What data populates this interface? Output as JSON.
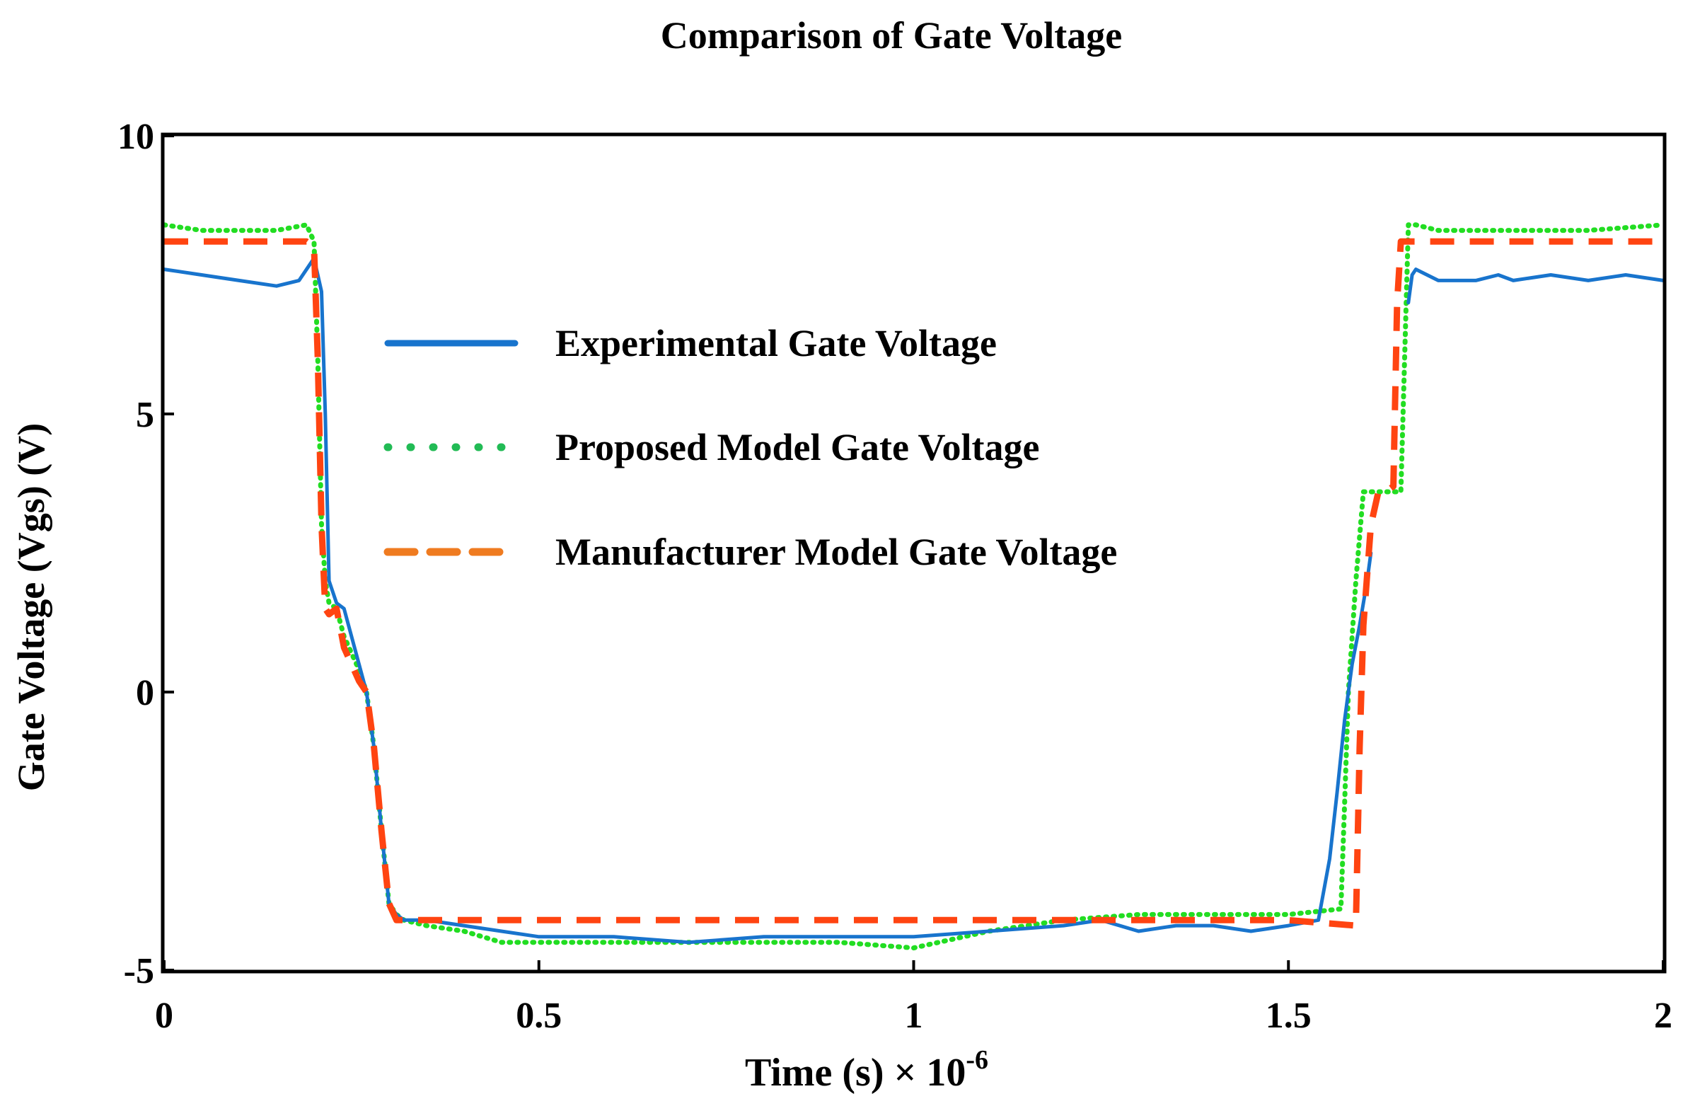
{
  "chart_data": {
    "type": "line",
    "title": "Comparison of Gate Voltage",
    "xlabel": "Time (s) × 10",
    "xlabel_exponent": "-6",
    "ylabel": "Gate Voltage (Vgs) (V)",
    "xlim": [
      0,
      2
    ],
    "ylim": [
      -5,
      10
    ],
    "x_ticks": [
      0,
      0.5,
      1,
      1.5,
      2
    ],
    "x_tick_labels": [
      "0",
      "0.5",
      "1",
      "1.5",
      "2"
    ],
    "y_ticks": [
      -5,
      0,
      5,
      10
    ],
    "y_tick_labels": [
      "-5",
      "0",
      "5",
      "10"
    ],
    "grid": false,
    "legend_position": "upper-left-center",
    "series": [
      {
        "name": "Experimental Gate Voltage",
        "color": "#1874cd",
        "style": "solid",
        "x": [
          0,
          0.05,
          0.1,
          0.15,
          0.18,
          0.2,
          0.21,
          0.215,
          0.22,
          0.225,
          0.23,
          0.24,
          0.26,
          0.27,
          0.28,
          0.29,
          0.3,
          0.31,
          0.32,
          0.35,
          0.4,
          0.45,
          0.5,
          0.6,
          0.7,
          0.8,
          0.9,
          1.0,
          1.1,
          1.2,
          1.25,
          1.3,
          1.35,
          1.4,
          1.45,
          1.5,
          1.54,
          1.555,
          1.565,
          1.575,
          1.585,
          1.595,
          1.605,
          1.61,
          1.615,
          1.65,
          1.66,
          1.665,
          1.67,
          1.7,
          1.75,
          1.78,
          1.8,
          1.85,
          1.9,
          1.95,
          2.0
        ],
        "y": [
          7.6,
          7.5,
          7.4,
          7.3,
          7.4,
          7.8,
          7.2,
          5.0,
          2.0,
          1.8,
          1.6,
          1.5,
          0.5,
          0.0,
          -1.0,
          -2.5,
          -3.8,
          -4.0,
          -4.1,
          -4.1,
          -4.2,
          -4.3,
          -4.4,
          -4.4,
          -4.5,
          -4.4,
          -4.4,
          -4.4,
          -4.3,
          -4.2,
          -4.1,
          -4.3,
          -4.2,
          -4.2,
          -4.3,
          -4.2,
          -4.1,
          -3.0,
          -1.8,
          -0.5,
          0.5,
          1.2,
          2.0,
          2.5,
          null,
          null,
          7.0,
          7.5,
          7.6,
          7.4,
          7.4,
          7.5,
          7.4,
          7.5,
          7.4,
          7.5,
          7.4
        ]
      },
      {
        "name": "Proposed Model Gate Voltage",
        "color": "#22dd22",
        "style": "dotted",
        "x": [
          0,
          0.05,
          0.1,
          0.15,
          0.19,
          0.2,
          0.205,
          0.21,
          0.215,
          0.22,
          0.23,
          0.24,
          0.26,
          0.27,
          0.28,
          0.29,
          0.3,
          0.31,
          0.32,
          0.35,
          0.4,
          0.45,
          0.5,
          0.6,
          0.7,
          0.8,
          0.9,
          1.0,
          1.1,
          1.2,
          1.3,
          1.4,
          1.5,
          1.57,
          1.575,
          1.58,
          1.59,
          1.6,
          1.61,
          1.65,
          1.655,
          1.66,
          1.67,
          1.7,
          1.8,
          1.9,
          2.0
        ],
        "y": [
          8.4,
          8.3,
          8.3,
          8.3,
          8.4,
          8.1,
          6.0,
          3.0,
          2.0,
          1.6,
          1.5,
          1.0,
          0.4,
          0.0,
          -1.0,
          -2.5,
          -3.8,
          -4.0,
          -4.1,
          -4.2,
          -4.3,
          -4.5,
          -4.5,
          -4.5,
          -4.5,
          -4.5,
          -4.5,
          -4.6,
          -4.3,
          -4.1,
          -4.0,
          -4.0,
          -4.0,
          -3.9,
          -2.0,
          0.0,
          2.0,
          3.6,
          3.6,
          3.6,
          6.0,
          8.4,
          8.4,
          8.3,
          8.3,
          8.3,
          8.4
        ]
      },
      {
        "name": "Manufacturer Model Gate Voltage",
        "color": "#ff4411",
        "style": "dashed",
        "x": [
          0,
          0.1,
          0.19,
          0.2,
          0.205,
          0.21,
          0.215,
          0.22,
          0.23,
          0.24,
          0.26,
          0.27,
          0.28,
          0.29,
          0.3,
          0.31,
          0.4,
          0.5,
          0.6,
          0.7,
          0.8,
          0.9,
          1.0,
          1.1,
          1.2,
          1.3,
          1.4,
          1.5,
          1.59,
          1.595,
          1.6,
          1.61,
          1.62,
          1.63,
          1.64,
          1.645,
          1.65,
          1.66,
          1.7,
          1.8,
          1.9,
          2.0
        ],
        "y": [
          8.1,
          8.1,
          8.1,
          8.0,
          6.0,
          3.0,
          1.5,
          1.4,
          1.5,
          0.8,
          0.2,
          0.0,
          -1.0,
          -2.5,
          -3.8,
          -4.1,
          -4.1,
          -4.1,
          -4.1,
          -4.1,
          -4.1,
          -4.1,
          -4.1,
          -4.1,
          -4.1,
          -4.1,
          -4.1,
          -4.1,
          -4.2,
          -1.0,
          1.2,
          3.0,
          3.6,
          3.6,
          3.7,
          7.0,
          8.1,
          8.1,
          8.1,
          8.1,
          8.1,
          8.1
        ]
      }
    ]
  }
}
